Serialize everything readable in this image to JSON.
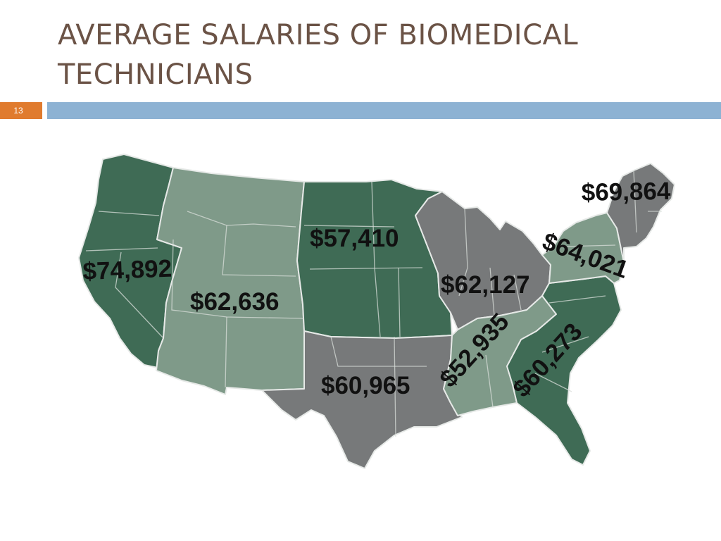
{
  "slide": {
    "title": "AVERAGE SALARIES OF BIOMEDICAL TECHNICIANS",
    "number": "13"
  },
  "colors": {
    "dark_green": "#3f6b55",
    "light_green": "#7f9a89",
    "gray": "#77797a",
    "title_text": "#6b5346",
    "slide_number_bg": "#e07b2e",
    "rule": "#8db2d3"
  },
  "map": {
    "labels": {
      "pacific": "$74,892",
      "mountain": "$62,636",
      "west_north_central": "$57,410",
      "west_south_central": "$60,965",
      "east_north_central": "$62,127",
      "east_south_central": "$52,935",
      "south_atlantic": "$60,273",
      "mid_atlantic": "$64,021",
      "new_england": "$69,864"
    }
  }
}
